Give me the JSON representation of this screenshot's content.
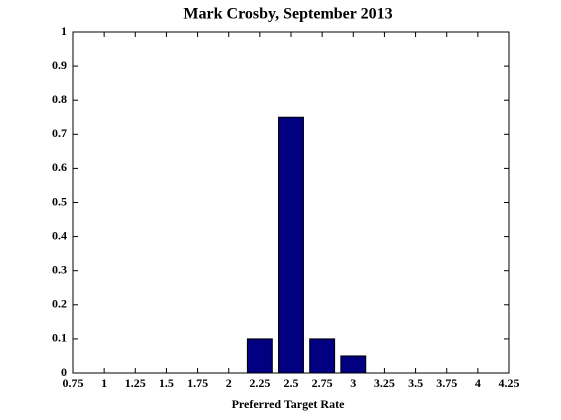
{
  "chart_data": {
    "type": "bar",
    "title": "Mark Crosby, September 2013",
    "xlabel": "Preferred Target Rate",
    "x": [
      2.25,
      2.5,
      2.75,
      3
    ],
    "values": [
      0.1,
      0.75,
      0.1,
      0.05
    ],
    "color": "#000080",
    "xlim": [
      0.75,
      4.25
    ],
    "xticks": [
      0.75,
      1,
      1.25,
      1.5,
      1.75,
      2,
      2.25,
      2.5,
      2.75,
      3,
      3.25,
      3.5,
      3.75,
      4,
      4.25
    ],
    "ylim": [
      0,
      1
    ],
    "yticks": [
      0,
      0.1,
      0.2,
      0.3,
      0.4,
      0.5,
      0.6,
      0.7,
      0.8,
      0.9,
      1
    ]
  }
}
